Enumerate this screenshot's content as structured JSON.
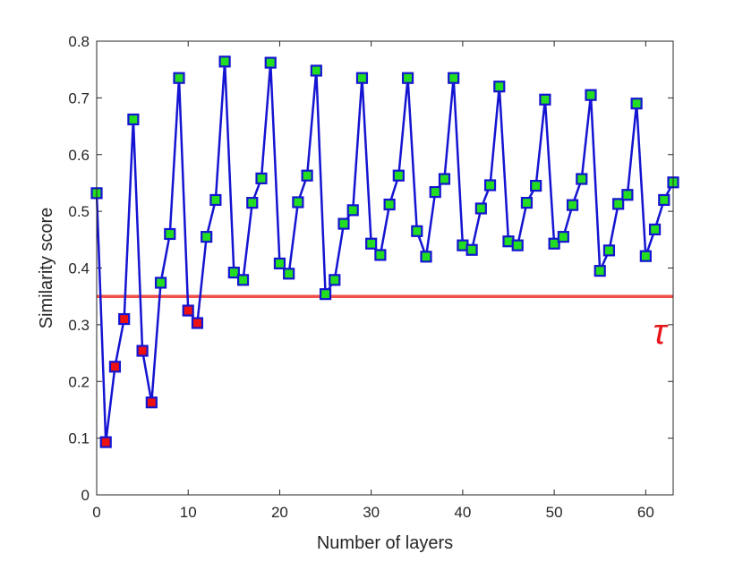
{
  "chart_data": {
    "type": "line",
    "title": "",
    "xlabel": "Number of layers",
    "ylabel": "Similarity score",
    "xlim": [
      0,
      63
    ],
    "ylim": [
      0,
      0.8
    ],
    "xticks": [
      0,
      10,
      20,
      30,
      40,
      50,
      60
    ],
    "yticks": [
      0,
      0.1,
      0.2,
      0.3,
      0.4,
      0.5,
      0.6,
      0.7,
      0.8
    ],
    "grid": false,
    "legend": "none",
    "series": [
      {
        "name": "",
        "color": "#1414d2",
        "marker": "square",
        "marker_fill_above": "#22dd22",
        "marker_fill_below": "#ee1111",
        "x": [
          0,
          1,
          2,
          3,
          4,
          5,
          6,
          7,
          8,
          9,
          10,
          11,
          12,
          13,
          14,
          15,
          16,
          17,
          18,
          19,
          20,
          21,
          22,
          23,
          24,
          25,
          26,
          27,
          28,
          29,
          30,
          31,
          32,
          33,
          34,
          35,
          36,
          37,
          38,
          39,
          40,
          41,
          42,
          43,
          44,
          45,
          46,
          47,
          48,
          49,
          50,
          51,
          52,
          53,
          54,
          55,
          56,
          57,
          58,
          59,
          60,
          61,
          62,
          63
        ],
        "y": [
          0.532,
          0.093,
          0.226,
          0.31,
          0.662,
          0.254,
          0.163,
          0.374,
          0.46,
          0.735,
          0.325,
          0.303,
          0.455,
          0.52,
          0.764,
          0.392,
          0.379,
          0.515,
          0.558,
          0.762,
          0.408,
          0.39,
          0.516,
          0.563,
          0.748,
          0.354,
          0.379,
          0.478,
          0.502,
          0.735,
          0.443,
          0.423,
          0.512,
          0.563,
          0.735,
          0.465,
          0.42,
          0.534,
          0.557,
          0.735,
          0.44,
          0.432,
          0.505,
          0.546,
          0.72,
          0.447,
          0.44,
          0.515,
          0.545,
          0.697,
          0.443,
          0.455,
          0.511,
          0.557,
          0.705,
          0.395,
          0.431,
          0.513,
          0.529,
          0.69,
          0.421,
          0.468,
          0.52,
          0.551
        ]
      }
    ],
    "threshold": {
      "value": 0.35,
      "color": "#f0504a",
      "label": "τ",
      "label_color": "#e8141a"
    }
  }
}
